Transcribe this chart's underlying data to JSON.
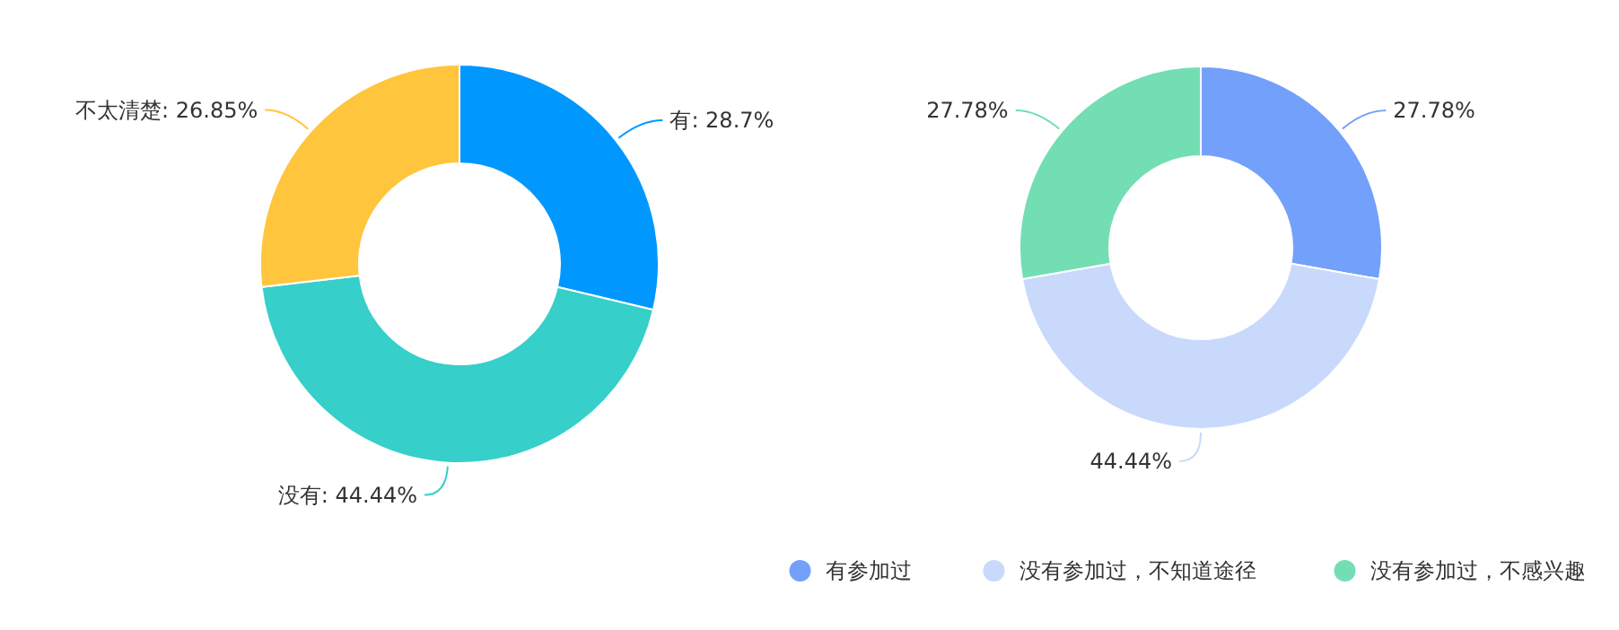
{
  "chart_data": [
    {
      "type": "donut",
      "categories": [
        "有",
        "没有",
        "不太清楚"
      ],
      "values": [
        28.7,
        44.44,
        26.85
      ],
      "colors": [
        "#0098ff",
        "#36cfc9",
        "#ffc53d"
      ],
      "value_labels": [
        "28.7%",
        "44.44%",
        "26.85%"
      ],
      "legend": false
    },
    {
      "type": "donut",
      "categories": [
        "有参加过",
        "没有参加过，不知道途径",
        "没有参加过，不感兴趣"
      ],
      "values": [
        27.78,
        44.44,
        27.78
      ],
      "colors": [
        "#73a0fa",
        "#c8d9fc",
        "#73deb3"
      ],
      "value_labels": [
        "27.78%",
        "44.44%",
        "27.78%"
      ],
      "legend": "bottom"
    }
  ]
}
